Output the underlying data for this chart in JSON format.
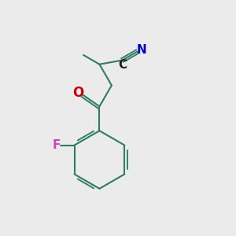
{
  "background_color": "#ebebeb",
  "bond_color": "#2e7d5e",
  "bond_width": 1.5,
  "O_color": "#cc0000",
  "F_color": "#cc44cc",
  "N_color": "#0000cc",
  "C_color": "#222222",
  "label_fontsize": 11,
  "fig_width": 3.0,
  "fig_height": 3.0,
  "dpi": 100,
  "xlim": [
    0,
    10
  ],
  "ylim": [
    0,
    10
  ]
}
